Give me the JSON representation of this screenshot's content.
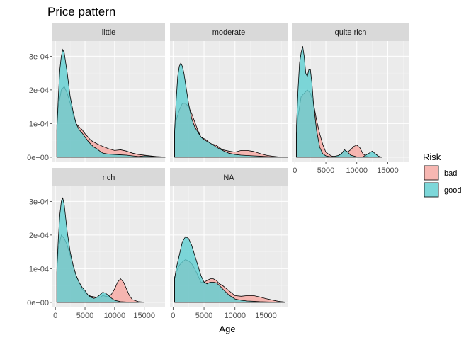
{
  "chart_data": {
    "type": "area",
    "subtype": "density",
    "title": "Price pattern",
    "xlabel": "Age",
    "ylabel": "",
    "xlim": [
      -500,
      18500
    ],
    "ylim": [
      -1.5e-05,
      0.000345
    ],
    "x_ticks": [
      0,
      5000,
      10000,
      15000
    ],
    "x_tick_labels": [
      "0",
      "5000",
      "10000",
      "15000"
    ],
    "y_ticks": [
      0,
      0.0001,
      0.0002,
      0.0003
    ],
    "y_tick_labels": [
      "0e+00",
      "1e-04",
      "2e-04",
      "3e-04"
    ],
    "grid": true,
    "legend": {
      "title": "Risk",
      "position": "right",
      "entries": [
        "bad",
        "good"
      ]
    },
    "colors": {
      "bad": "#f8a7a1",
      "good": "#5fd0d2",
      "panel": "#ebebeb",
      "strip": "#d9d9d9"
    },
    "panels": [
      {
        "name": "little",
        "series": [
          {
            "name": "bad",
            "x": [
              250,
              500,
              1000,
              1500,
              2000,
              2500,
              3000,
              3500,
              4000,
              4500,
              5000,
              5500,
              6000,
              6500,
              7000,
              7500,
              8000,
              9000,
              10000,
              11000,
              12000,
              13000,
              14000,
              15000,
              16000,
              17000,
              18000,
              18500
            ],
            "y": [
              9.5e-05,
              0.00015,
              0.0002,
              0.00021,
              0.00019,
              0.00016,
              0.000125,
              0.0001,
              9e-05,
              8.2e-05,
              7e-05,
              6e-05,
              5e-05,
              4.5e-05,
              4e-05,
              3.6e-05,
              3.2e-05,
              2.5e-05,
              2e-05,
              2.2e-05,
              1.8e-05,
              1.2e-05,
              8e-06,
              6e-06,
              4e-06,
              2e-06,
              1e-06,
              1e-06
            ]
          },
          {
            "name": "good",
            "x": [
              250,
              500,
              750,
              1000,
              1250,
              1500,
              1750,
              2000,
              2500,
              3000,
              3500,
              4000,
              4500,
              5000,
              5500,
              6000,
              6500,
              7000,
              7500,
              8000,
              9000,
              10000,
              11000,
              12000,
              13000,
              14000,
              15000,
              16000,
              17000,
              18500
            ],
            "y": [
              8e-05,
              0.00018,
              0.00026,
              0.0003,
              0.00032,
              0.00031,
              0.00028,
              0.00025,
              0.00018,
              0.000135,
              0.0001,
              8.2e-05,
              7.2e-05,
              6e-05,
              4.8e-05,
              3.8e-05,
              3e-05,
              2.5e-05,
              1.8e-05,
              1.2e-05,
              9e-06,
              8e-06,
              7e-06,
              6e-06,
              4e-06,
              2e-06,
              4e-06,
              3e-06,
              1e-06,
              1e-06
            ]
          }
        ]
      },
      {
        "name": "moderate",
        "series": [
          {
            "name": "bad",
            "x": [
              250,
              500,
              1000,
              1500,
              2000,
              2500,
              3000,
              3500,
              4000,
              4500,
              5000,
              5500,
              6000,
              6500,
              7000,
              8000,
              9000,
              10000,
              11000,
              12000,
              13000,
              14000,
              15000,
              16000,
              17000,
              18500
            ],
            "y": [
              7.5e-05,
              0.00011,
              0.00014,
              0.00016,
              0.00016,
              0.00015,
              0.00013,
              0.000105,
              8e-05,
              6e-05,
              5.5e-05,
              5e-05,
              4e-05,
              3.8e-05,
              3.5e-05,
              2.2e-05,
              1.8e-05,
              1.5e-05,
              2e-05,
              2e-05,
              1.7e-05,
              1.1e-05,
              6e-06,
              3e-06,
              1e-06,
              1e-06
            ]
          },
          {
            "name": "good",
            "x": [
              250,
              500,
              750,
              1000,
              1250,
              1500,
              1750,
              2000,
              2500,
              3000,
              3500,
              4000,
              4500,
              5000,
              6000,
              7000,
              8000,
              9000,
              10000,
              11000,
              12000,
              13000,
              14000,
              15000,
              16000,
              18500
            ],
            "y": [
              8e-05,
              0.00017,
              0.00024,
              0.00027,
              0.00028,
              0.00027,
              0.00025,
              0.00022,
              0.00016,
              0.000115,
              9e-05,
              7.5e-05,
              6e-05,
              5.2e-05,
              4.2e-05,
              3e-05,
              2e-05,
              1.2e-05,
              8e-06,
              6e-06,
              5e-06,
              4e-06,
              3e-06,
              2e-06,
              1e-06,
              1e-06
            ]
          }
        ]
      },
      {
        "name": "quite rich",
        "series": [
          {
            "name": "bad",
            "x": [
              250,
              500,
              1000,
              1500,
              2000,
              2500,
              3000,
              3500,
              4000,
              4500,
              5000,
              5500,
              6000,
              6500,
              7000,
              7500,
              8000,
              8500,
              9000,
              9500,
              10000,
              10500,
              11000,
              11500,
              12000,
              13000,
              14000
            ],
            "y": [
              7e-05,
              0.00012,
              0.00018,
              0.00019,
              0.0002,
              0.00019,
              0.00016,
              0.00011,
              7e-05,
              3.8e-05,
              1.5e-05,
              8e-06,
              3e-06,
              2e-06,
              3e-06,
              1e-05,
              2e-05,
              1.5e-05,
              2.2e-05,
              3.2e-05,
              3.6e-05,
              2.8e-05,
              1e-05,
              3e-06,
              1e-06,
              1e-06,
              5e-07
            ]
          },
          {
            "name": "good",
            "x": [
              250,
              500,
              750,
              1000,
              1250,
              1500,
              1750,
              2000,
              2250,
              2500,
              2750,
              3000,
              3500,
              4000,
              4500,
              5000,
              5500,
              6000,
              7000,
              7500,
              8000,
              8500,
              9000,
              10000,
              11000,
              12000,
              12500,
              13000,
              13500,
              14000
            ],
            "y": [
              9e-05,
              0.0002,
              0.00028,
              0.00031,
              0.00033,
              0.0003,
              0.00025,
              0.00024,
              0.00026,
              0.00026,
              0.00022,
              0.00016,
              8e-05,
              3e-05,
              1e-05,
              4e-06,
              2e-06,
              1e-06,
              5e-06,
              1e-05,
              2.2e-05,
              1.6e-05,
              6e-06,
              1e-06,
              1e-06,
              1.2e-05,
              1.8e-05,
              1e-05,
              3e-06,
              5e-07
            ]
          }
        ]
      },
      {
        "name": "rich",
        "series": [
          {
            "name": "bad",
            "x": [
              250,
              500,
              1000,
              1500,
              2000,
              2500,
              3000,
              3500,
              4000,
              4500,
              5000,
              5500,
              6000,
              7000,
              7500,
              8000,
              8500,
              9000,
              9500,
              10000,
              10500,
              11000,
              11500,
              12000,
              12500,
              13000,
              14000,
              15000
            ],
            "y": [
              9e-05,
              0.00016,
              0.0002,
              0.00019,
              0.00017,
              0.00014,
              0.00011,
              8e-05,
              6e-05,
              4e-05,
              3e-05,
              2.2e-05,
              1.8e-05,
              1.5e-05,
              1.5e-05,
              2e-05,
              1.8e-05,
              1.6e-05,
              2.5e-05,
              4e-05,
              6e-05,
              7e-05,
              6e-05,
              4e-05,
              2e-05,
              8e-06,
              2e-06,
              5e-07
            ]
          },
          {
            "name": "good",
            "x": [
              250,
              500,
              750,
              1000,
              1250,
              1500,
              1750,
              2000,
              2500,
              3000,
              3500,
              4000,
              4500,
              5000,
              5500,
              6000,
              6500,
              7000,
              7500,
              8000,
              8500,
              9000,
              9500,
              10000,
              11000,
              12000,
              14000
            ],
            "y": [
              0.0001,
              0.00019,
              0.00026,
              0.0003,
              0.00031,
              0.00029,
              0.00025,
              0.00021,
              0.00015,
              0.00011,
              8e-05,
              6e-05,
              4.5e-05,
              3.5e-05,
              2.2e-05,
              1.5e-05,
              1.2e-05,
              1.5e-05,
              2.2e-05,
              3e-05,
              2.7e-05,
              2e-05,
              1.2e-05,
              6e-06,
              2e-06,
              1e-06,
              5e-07
            ]
          }
        ]
      },
      {
        "name": "NA",
        "series": [
          {
            "name": "bad",
            "x": [
              250,
              500,
              1000,
              1500,
              2000,
              2500,
              3000,
              3500,
              4000,
              4500,
              5000,
              5500,
              6000,
              6500,
              7000,
              7500,
              8000,
              9000,
              10000,
              11000,
              12000,
              13000,
              14000,
              15000,
              16000,
              17000,
              18000
            ],
            "y": [
              7.5e-05,
              9e-05,
              0.00011,
              0.00012,
              0.000127,
              0.000123,
              0.000115,
              0.0001,
              8e-05,
              6e-05,
              6e-05,
              6.5e-05,
              7e-05,
              7e-05,
              6.5e-05,
              5.5e-05,
              5e-05,
              3.5e-05,
              2e-05,
              1.8e-05,
              2e-05,
              2e-05,
              1.6e-05,
              1.1e-05,
              7e-06,
              3e-06,
              1e-06
            ]
          },
          {
            "name": "good",
            "x": [
              250,
              500,
              1000,
              1500,
              2000,
              2500,
              3000,
              3500,
              4000,
              4500,
              5000,
              5500,
              6000,
              6500,
              7000,
              7500,
              8000,
              9000,
              10000,
              11000,
              12000,
              13000,
              14000,
              16000,
              18000
            ],
            "y": [
              7e-05,
              0.0001,
              0.00014,
              0.00018,
              0.000195,
              0.00019,
              0.00017,
              0.00014,
              0.00011,
              8e-05,
              6e-05,
              5.5e-05,
              6e-05,
              6e-05,
              5.8e-05,
              5e-05,
              4e-05,
              2.2e-05,
              1e-05,
              6e-06,
              4e-06,
              3e-06,
              2e-06,
              1e-06,
              5e-07
            ]
          }
        ]
      }
    ]
  }
}
